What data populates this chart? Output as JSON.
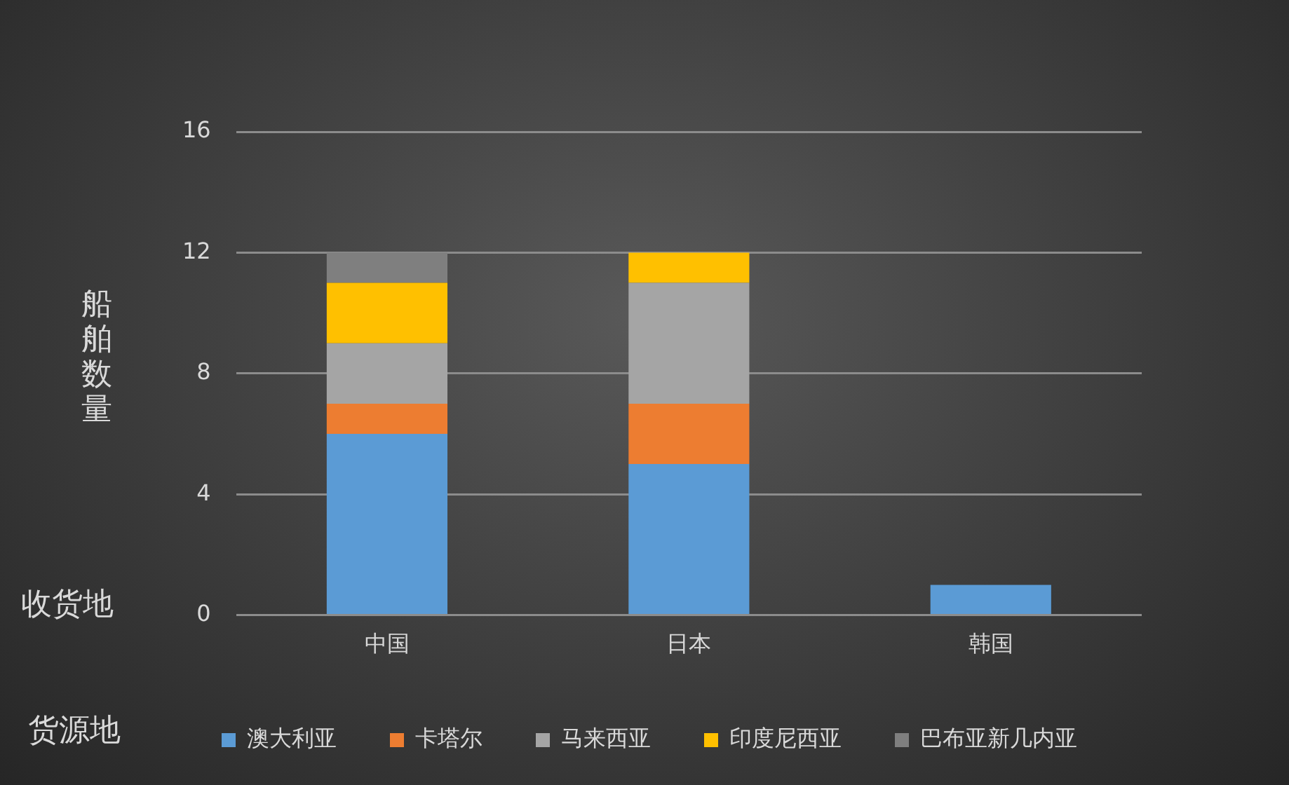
{
  "chart_data": {
    "type": "bar",
    "stacked": true,
    "ylabel": "船舶数量",
    "xlabel": "收货地",
    "legend_title": "货源地",
    "categories": [
      "中国",
      "日本",
      "韩国"
    ],
    "series": [
      {
        "name": "澳大利亚",
        "color": "#5b9bd5",
        "values": [
          6,
          5,
          1
        ]
      },
      {
        "name": "卡塔尔",
        "color": "#ed7d31",
        "values": [
          1,
          2,
          0
        ]
      },
      {
        "name": "马来西亚",
        "color": "#a5a5a5",
        "values": [
          2,
          4,
          0
        ]
      },
      {
        "name": "印度尼西亚",
        "color": "#ffc000",
        "values": [
          2,
          1,
          0
        ]
      },
      {
        "name": "巴布亚新几内亚",
        "color": "#7f7f7f",
        "values": [
          1,
          0,
          0
        ]
      }
    ],
    "ylim": [
      0,
      16
    ],
    "yticks": [
      0,
      4,
      8,
      12,
      16
    ],
    "grid": "y",
    "legend": "bottom"
  }
}
